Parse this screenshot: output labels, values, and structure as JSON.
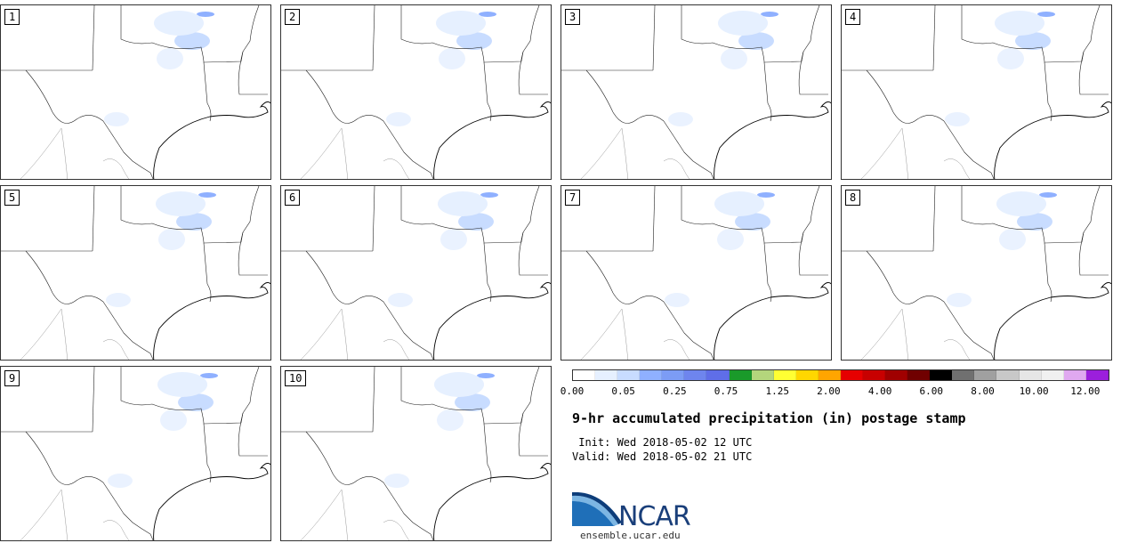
{
  "panels": [
    {
      "label": "1"
    },
    {
      "label": "2"
    },
    {
      "label": "3"
    },
    {
      "label": "4"
    },
    {
      "label": "5"
    },
    {
      "label": "6"
    },
    {
      "label": "7"
    },
    {
      "label": "8"
    },
    {
      "label": "9"
    },
    {
      "label": "10"
    }
  ],
  "colorbar": {
    "colors": [
      "#ffffff",
      "#e6f0ff",
      "#c8dcff",
      "#8fb0ff",
      "#7c9cf5",
      "#6e85ee",
      "#5f6ee8",
      "#1a9a2a",
      "#b4d67c",
      "#ffff33",
      "#ffd700",
      "#ffa500",
      "#e60000",
      "#c80000",
      "#a00000",
      "#700000",
      "#000000",
      "#707070",
      "#a0a0a0",
      "#c8c8c8",
      "#e6e6e6",
      "#f0f0f0",
      "#e0a8f0",
      "#9b1fdc"
    ],
    "tick_labels": [
      "0.00",
      "0.05",
      "0.25",
      "0.75",
      "1.25",
      "2.00",
      "4.00",
      "6.00",
      "8.00",
      "10.00",
      "12.00"
    ]
  },
  "title": "9-hr accumulated precipitation (in) postage stamp",
  "init_line": " Init: Wed 2018-05-02 12 UTC",
  "valid_line": "Valid: Wed 2018-05-02 21 UTC",
  "logo": {
    "name": "NCAR",
    "url": "ensemble.ucar.edu",
    "primary_color": "#1a3f7a",
    "accent_color": "#2a7fc0"
  }
}
